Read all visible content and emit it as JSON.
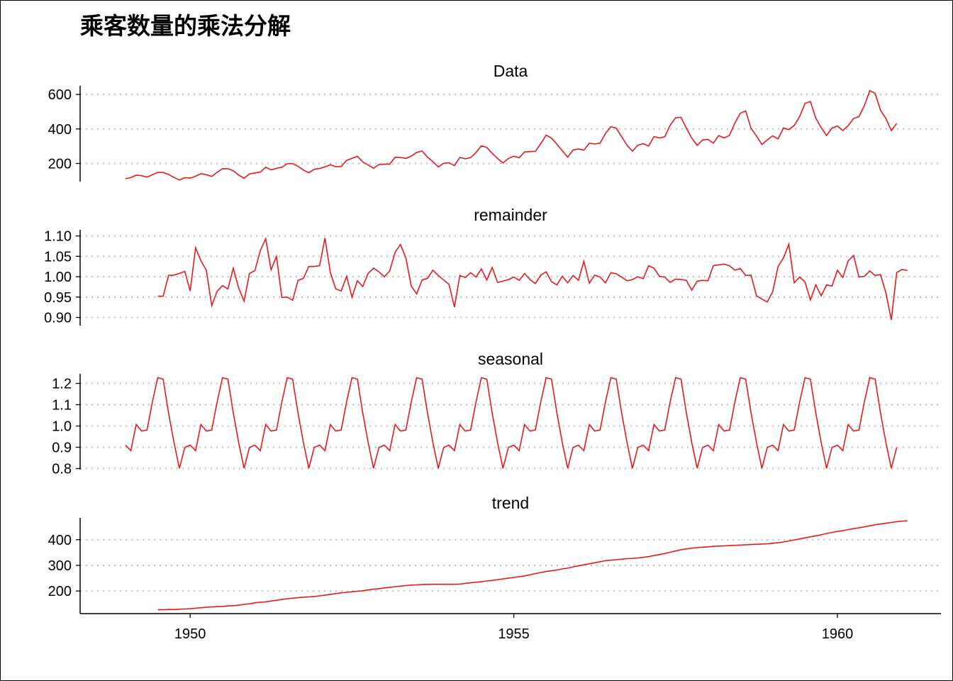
{
  "title": "乘客数量的乘法分解",
  "chart_data": {
    "type": "line",
    "title": "乘客数量的乘法分解",
    "line_color": "#e41a1c",
    "grid": "horizontal dotted",
    "xlim": [
      1948.3,
      1961.6
    ],
    "x_ticks": [
      1950,
      1955,
      1960
    ],
    "x_tick_labels": [
      "1950",
      "1955",
      "1960"
    ],
    "x_start": 1949.0,
    "x_step": 0.083333,
    "panels": [
      {
        "name": "Data",
        "ylim": [
          95,
          650
        ],
        "y_ticks": [
          200,
          400,
          600
        ],
        "y_tick_labels": [
          "200",
          "400",
          "600"
        ],
        "values": [
          112,
          118,
          132,
          129,
          121,
          135,
          148,
          148,
          136,
          119,
          104,
          118,
          115,
          126,
          141,
          135,
          125,
          149,
          170,
          170,
          158,
          133,
          114,
          140,
          145,
          150,
          178,
          163,
          172,
          178,
          199,
          199,
          184,
          162,
          146,
          166,
          171,
          180,
          193,
          181,
          183,
          218,
          230,
          242,
          209,
          191,
          172,
          194,
          196,
          196,
          236,
          235,
          229,
          243,
          264,
          272,
          237,
          211,
          180,
          201,
          204,
          188,
          235,
          227,
          234,
          264,
          302,
          293,
          259,
          229,
          203,
          229,
          242,
          233,
          267,
          269,
          270,
          315,
          364,
          347,
          312,
          274,
          237,
          278,
          284,
          277,
          317,
          313,
          318,
          374,
          413,
          405,
          355,
          306,
          271,
          306,
          315,
          301,
          356,
          348,
          355,
          422,
          465,
          467,
          404,
          347,
          305,
          336,
          340,
          318,
          362,
          348,
          363,
          435,
          491,
          505,
          404,
          359,
          310,
          337,
          360,
          342,
          406,
          396,
          420,
          472,
          548,
          559,
          463,
          407,
          362,
          405,
          417,
          391,
          419,
          461,
          472,
          535,
          622,
          606,
          508,
          461,
          390,
          432
        ]
      },
      {
        "name": "remainder",
        "ylim": [
          0.88,
          1.115
        ],
        "y_ticks": [
          0.9,
          0.95,
          1.0,
          1.05,
          1.1
        ],
        "y_tick_labels": [
          "0.90",
          "0.95",
          "1.00",
          "1.05",
          "1.10"
        ],
        "start_index": 6,
        "values": [
          0.952,
          0.952,
          1.003,
          1.004,
          1.008,
          1.013,
          0.965,
          1.071,
          1.039,
          1.016,
          0.929,
          0.964,
          0.978,
          0.97,
          1.021,
          0.972,
          0.94,
          1.008,
          1.015,
          1.064,
          1.093,
          1.017,
          1.05,
          0.949,
          0.95,
          0.942,
          0.991,
          0.996,
          1.025,
          1.025,
          1.027,
          1.095,
          1.01,
          0.97,
          0.965,
          1.001,
          0.95,
          0.99,
          0.976,
          1.008,
          1.021,
          1.012,
          1.0,
          1.014,
          1.06,
          1.079,
          1.046,
          0.977,
          0.958,
          0.992,
          0.996,
          1.016,
          1.003,
          0.992,
          0.981,
          0.925,
          1.003,
          0.998,
          1.01,
          0.999,
          1.019,
          0.992,
          1.023,
          0.986,
          0.989,
          0.993,
          0.999,
          0.991,
          1.008,
          0.993,
          0.983,
          1.004,
          1.012,
          0.988,
          0.98,
          1.001,
          0.985,
          1.003,
          0.991,
          1.038,
          0.984,
          1.004,
          0.999,
          0.985,
          1.01,
          1.007,
          0.999,
          0.99,
          0.993,
          1.0,
          0.995,
          1.027,
          1.021,
          1.001,
          0.999,
          0.986,
          0.994,
          0.993,
          0.991,
          0.967,
          0.989,
          0.991,
          0.99,
          1.027,
          1.029,
          1.031,
          1.027,
          1.016,
          1.02,
          1.003,
          1.004,
          0.953,
          0.945,
          0.938,
          0.963,
          1.025,
          1.046,
          1.08,
          0.985,
          0.999,
          0.987,
          0.943,
          0.98,
          0.953,
          0.98,
          0.977,
          1.016,
          0.998,
          1.039,
          1.052,
          0.999,
          1.001,
          1.014,
          1.003,
          1.005,
          0.96,
          0.894,
          1.01,
          1.018,
          1.015
        ]
      },
      {
        "name": "seasonal",
        "ylim": [
          0.795,
          1.245
        ],
        "y_ticks": [
          0.8,
          0.9,
          1.0,
          1.1,
          1.2
        ],
        "y_tick_labels": [
          "0.8",
          "0.9",
          "1.0",
          "1.1",
          "1.2"
        ],
        "values": [
          0.91,
          0.884,
          1.007,
          0.976,
          0.981,
          1.113,
          1.227,
          1.22,
          1.061,
          0.922,
          0.801,
          0.899
        ]
      },
      {
        "name": "trend",
        "ylim": [
          112,
          485
        ],
        "y_ticks": [
          200,
          300,
          400
        ],
        "y_tick_labels": [
          "200",
          "300",
          "400"
        ],
        "start_index": 6,
        "values": [
          127,
          127,
          128,
          128,
          129,
          130,
          131,
          133,
          135,
          137,
          138,
          139,
          140,
          142,
          143,
          145,
          148,
          150,
          154,
          156,
          158,
          161,
          164,
          167,
          170,
          172,
          174,
          176,
          177,
          179,
          181,
          184,
          187,
          190,
          193,
          195,
          197,
          199,
          201,
          204,
          207,
          209,
          212,
          214,
          217,
          219,
          221,
          223,
          224,
          225,
          226,
          226,
          226,
          226,
          226,
          226,
          227,
          230,
          232,
          234,
          236,
          239,
          241,
          244,
          247,
          250,
          253,
          256,
          259,
          263,
          268,
          272,
          276,
          279,
          282,
          286,
          289,
          294,
          298,
          302,
          306,
          310,
          314,
          318,
          320,
          322,
          324,
          326,
          327,
          329,
          331,
          334,
          338,
          342,
          346,
          351,
          356,
          361,
          364,
          367,
          369,
          371,
          372,
          374,
          375,
          376,
          377,
          378,
          379,
          380,
          381,
          382,
          383,
          384,
          386,
          388,
          391,
          395,
          399,
          403,
          407,
          411,
          415,
          419,
          424,
          428,
          432,
          435,
          439,
          443,
          446,
          450,
          454,
          458,
          461,
          464,
          467,
          470,
          472,
          474
        ]
      }
    ]
  }
}
